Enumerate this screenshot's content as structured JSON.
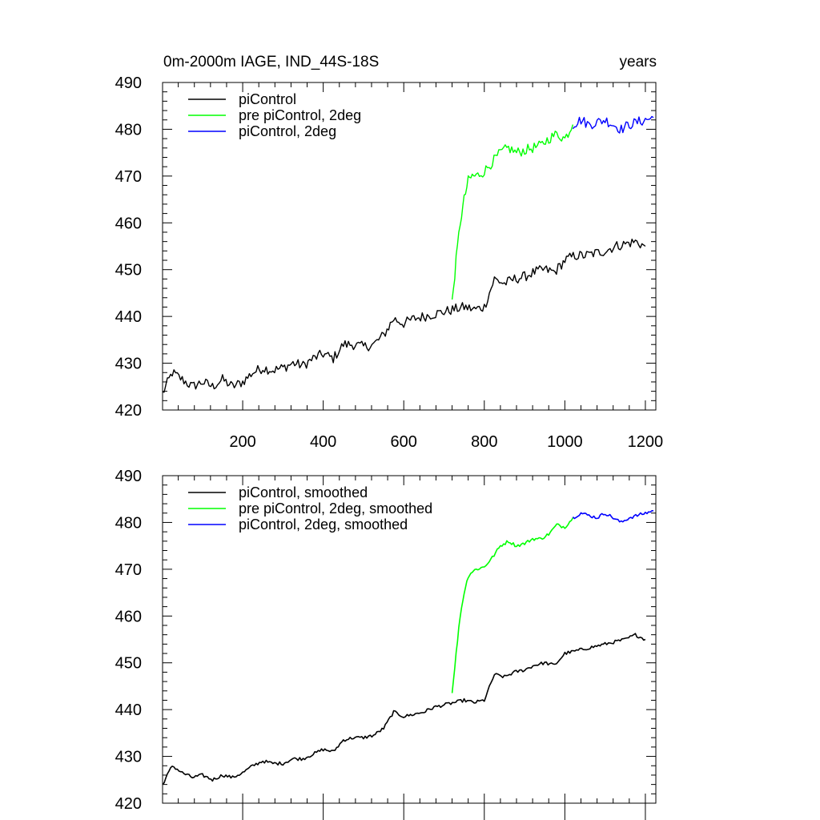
{
  "colors": {
    "piControl": "#000000",
    "pre_piControl_2deg": "#00ff00",
    "piControl_2deg": "#0000ff",
    "background": "#ffffff"
  },
  "chart_data": [
    {
      "type": "line",
      "title": "0m-2000m IAGE, IND_44S-18S",
      "right_title": "years",
      "xlim": [
        1,
        1226
      ],
      "ylim": [
        420,
        490
      ],
      "ytick_labels": [
        "420",
        "430",
        "440",
        "450",
        "460",
        "470",
        "480",
        "490"
      ],
      "xtick_labels": [
        "200",
        "400",
        "600",
        "800",
        "1000",
        "1200"
      ],
      "legend": [
        "piControl",
        "pre piControl, 2deg",
        "piControl, 2deg"
      ],
      "legend_position": "top-left",
      "series": [
        {
          "name": "piControl",
          "color": "#000000",
          "x": [
            1,
            25,
            50,
            75,
            100,
            125,
            150,
            175,
            200,
            225,
            250,
            275,
            300,
            325,
            350,
            375,
            400,
            425,
            450,
            475,
            500,
            525,
            550,
            575,
            600,
            625,
            650,
            675,
            700,
            725,
            750,
            775,
            800,
            825,
            850,
            875,
            900,
            925,
            950,
            975,
            1000,
            1025,
            1050,
            1075,
            1100,
            1125,
            1150,
            1175,
            1200
          ],
          "y": [
            423.5,
            428,
            426.5,
            425,
            426,
            425,
            426.5,
            425,
            426,
            428,
            429,
            428.5,
            429,
            430,
            429.5,
            431,
            432,
            431,
            434,
            434,
            433.5,
            434,
            436,
            439.5,
            438.5,
            439.5,
            440,
            440.5,
            441,
            441.5,
            442,
            441.5,
            442,
            448,
            447,
            448,
            448.5,
            449.5,
            450,
            449.5,
            452,
            453,
            453,
            453.5,
            454,
            455,
            455.5,
            456,
            455
          ]
        },
        {
          "name": "pre piControl, 2deg",
          "color": "#00ff00",
          "x": [
            720,
            730,
            740,
            750,
            760,
            770,
            780,
            800,
            820,
            840,
            860,
            880,
            900,
            920,
            940,
            960,
            980,
            1000,
            1020
          ],
          "y": [
            443,
            452,
            460,
            465,
            469,
            470,
            470,
            471,
            473,
            475,
            476,
            475,
            475.5,
            476,
            476.5,
            478,
            479,
            478,
            481
          ]
        },
        {
          "name": "piControl, 2deg",
          "color": "#0000ff",
          "x": [
            1020,
            1040,
            1060,
            1080,
            1100,
            1120,
            1140,
            1160,
            1180,
            1200,
            1220
          ],
          "y": [
            481,
            482,
            481,
            481.5,
            482,
            481,
            480,
            481,
            481.5,
            482,
            482.5
          ]
        }
      ]
    },
    {
      "type": "line",
      "title": "",
      "xlim": [
        1,
        1226
      ],
      "ylim": [
        420,
        490
      ],
      "ytick_labels": [
        "420",
        "430",
        "440",
        "450",
        "460",
        "470",
        "480",
        "490"
      ],
      "xtick_labels": [],
      "legend": [
        "piControl, smoothed",
        "pre piControl, 2deg, smoothed",
        "piControl, 2deg, smoothed"
      ],
      "legend_position": "top-left",
      "series": [
        {
          "name": "piControl, smoothed",
          "color": "#000000",
          "x": [
            1,
            25,
            50,
            75,
            100,
            125,
            150,
            175,
            200,
            225,
            250,
            275,
            300,
            325,
            350,
            375,
            400,
            425,
            450,
            475,
            500,
            525,
            550,
            575,
            600,
            625,
            650,
            675,
            700,
            725,
            750,
            775,
            800,
            825,
            850,
            875,
            900,
            925,
            950,
            975,
            1000,
            1025,
            1050,
            1075,
            1100,
            1125,
            1150,
            1175,
            1200
          ],
          "y": [
            424,
            428,
            426.5,
            425.5,
            426,
            425,
            426,
            425.5,
            426.5,
            428,
            429,
            428.5,
            428.5,
            429.5,
            429.5,
            430.5,
            431.5,
            431,
            433.5,
            434,
            434,
            434.5,
            436,
            439.5,
            438.5,
            439,
            439.5,
            440.5,
            441,
            441.5,
            442,
            441.5,
            442,
            447.5,
            447,
            448,
            448.5,
            449.5,
            450,
            449.5,
            452,
            452.5,
            453,
            453.5,
            454,
            454.5,
            455,
            456,
            455
          ]
        },
        {
          "name": "pre piControl, 2deg, smoothed",
          "color": "#00ff00",
          "x": [
            720,
            730,
            740,
            750,
            760,
            770,
            780,
            800,
            820,
            840,
            860,
            880,
            900,
            920,
            940,
            960,
            980,
            1000,
            1020
          ],
          "y": [
            443.5,
            452,
            460,
            465,
            468.5,
            469.5,
            470,
            470.5,
            472.5,
            475,
            476,
            475,
            475.5,
            476.5,
            476.5,
            477.5,
            479.5,
            479,
            481
          ]
        },
        {
          "name": "piControl, 2deg, smoothed",
          "color": "#0000ff",
          "x": [
            1020,
            1040,
            1060,
            1080,
            1100,
            1120,
            1140,
            1160,
            1180,
            1200,
            1220
          ],
          "y": [
            481,
            482,
            481.5,
            481,
            482,
            481,
            480,
            481,
            481.5,
            482,
            482.5
          ]
        }
      ]
    }
  ]
}
